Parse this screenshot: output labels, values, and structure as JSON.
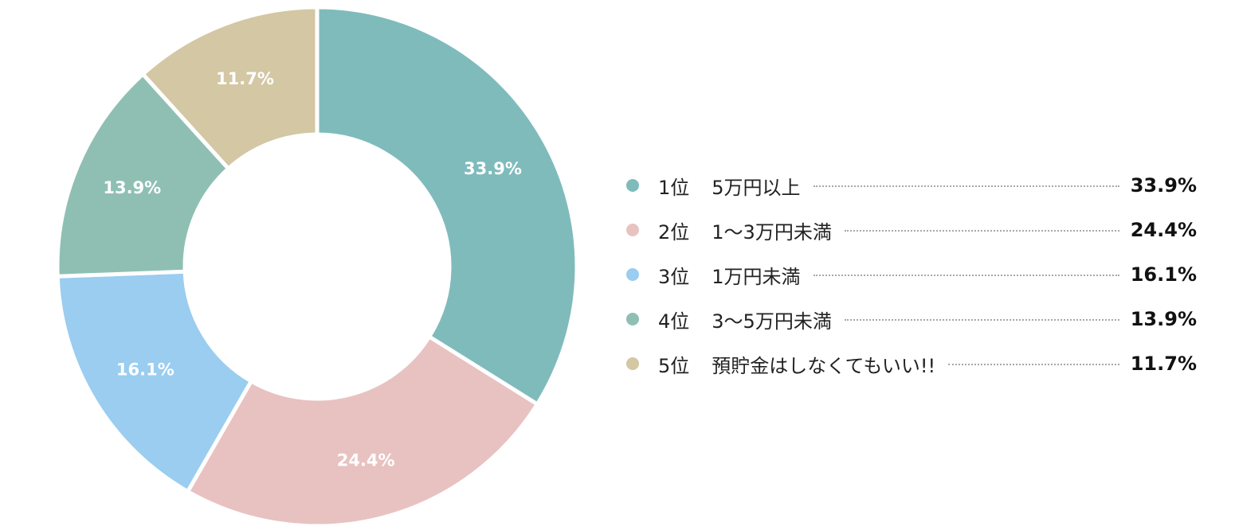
{
  "chart_data": {
    "type": "pie",
    "variant": "donut",
    "categories": [
      "5万円以上",
      "1〜3万円未満",
      "1万円未満",
      "3〜5万円未満",
      "預貯金はしなくてもいい!!"
    ],
    "ranks": [
      "1位",
      "2位",
      "3位",
      "4位",
      "5位"
    ],
    "values": [
      33.9,
      24.4,
      16.1,
      13.9,
      11.7
    ],
    "value_labels": [
      "33.9%",
      "24.4%",
      "16.1%",
      "13.9%",
      "11.7%"
    ],
    "colors": [
      "#80BBBC",
      "#E8C2C1",
      "#9ACDEF",
      "#8FBFB3",
      "#D3C7A4"
    ],
    "legend_position": "right",
    "title": ""
  }
}
